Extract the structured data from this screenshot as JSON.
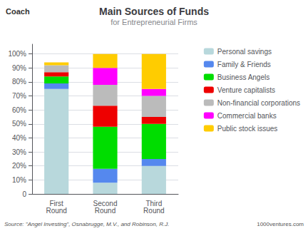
{
  "chart_data": {
    "type": "bar",
    "title": "Main Sources of Funds",
    "subtitle": "for Entrepreneurial Firms",
    "annotations": [
      "Coach",
      "Source: \"Angel Investing\", Osnabrugge, M.V., and Robinson, R.J.",
      "1000ventures.com"
    ],
    "categories": [
      "First\nRound",
      "Second\nRound",
      "Third\nRound"
    ],
    "series": [
      {
        "name": "Personal savings",
        "color": "#b8d8dc",
        "values": [
          75,
          8,
          20
        ]
      },
      {
        "name": "Family & Friends",
        "color": "#5588ee",
        "values": [
          4,
          10,
          5
        ]
      },
      {
        "name": "Business Angels",
        "color": "#00dd00",
        "values": [
          5,
          30,
          25
        ]
      },
      {
        "name": "Venture capitalists",
        "color": "#ee0000",
        "values": [
          3,
          15,
          5
        ]
      },
      {
        "name": "Non-financial corporations",
        "color": "#bbbbbb",
        "values": [
          5,
          15,
          15
        ]
      },
      {
        "name": "Commercial banks",
        "color": "#ff00ff",
        "values": [
          0,
          12,
          5
        ]
      },
      {
        "name": "Public stock issues",
        "color": "#ffcc00",
        "values": [
          2,
          10,
          25
        ]
      }
    ],
    "stacked": true,
    "ylim": [
      0,
      107
    ],
    "yticks": [
      0,
      {
        "value": 10,
        "label": "10%"
      },
      {
        "value": 20,
        "label": "20%"
      },
      {
        "value": 30,
        "label": "30%"
      },
      {
        "value": 40,
        "label": "40%"
      },
      {
        "value": 50,
        "label": "50%"
      },
      {
        "value": 60,
        "label": "60%"
      },
      {
        "value": 70,
        "label": "70%"
      },
      {
        "value": 80,
        "label": "80%"
      },
      {
        "value": 90,
        "label": "90%"
      },
      {
        "value": 100,
        "label": "100%"
      }
    ],
    "grid": true,
    "legend": "right"
  }
}
